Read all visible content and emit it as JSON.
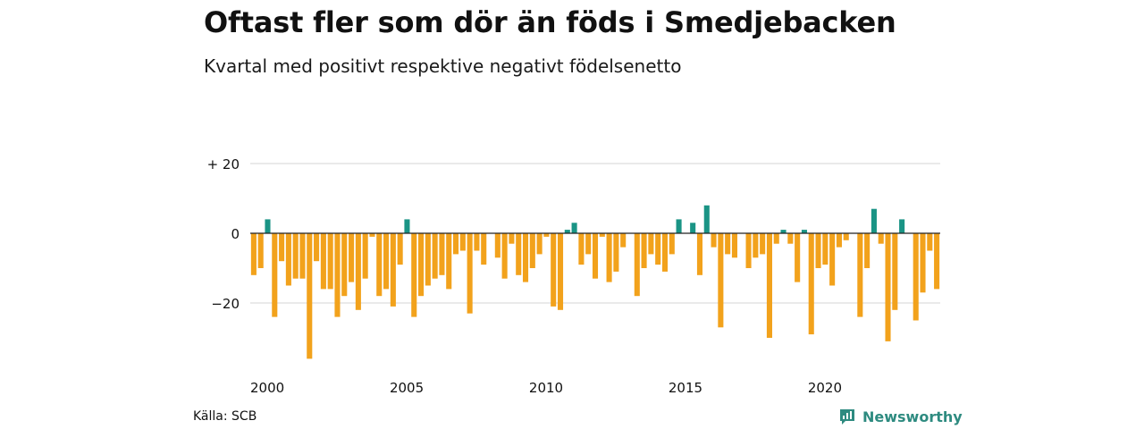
{
  "header": {
    "title": "Oftast fler som dör än föds i Smedjebacken",
    "subtitle": "Kvartal med positivt respektive negativt födelsenetto"
  },
  "footer": {
    "source": "Källa: SCB",
    "brand": "Newsworthy"
  },
  "colors": {
    "positive": "#1a9485",
    "negative": "#f2a21c",
    "grid": "#dddddd",
    "zero_line": "#222222",
    "brand": "#2e8b80"
  },
  "chart_data": {
    "type": "bar",
    "start": "2000 Q1",
    "frequency": "quarterly",
    "x_ticks": [
      "2000",
      "2005",
      "2010",
      "2015",
      "2020"
    ],
    "y_ticks": [
      {
        "value": 20,
        "label": "+ 20"
      },
      {
        "value": 0,
        "label": "0"
      },
      {
        "value": -20,
        "label": "−20"
      }
    ],
    "ylim": [
      -37,
      22
    ],
    "grid": true,
    "values": [
      -12,
      -10,
      4,
      -24,
      -8,
      -15,
      -13,
      -13,
      -36,
      -8,
      -16,
      -16,
      -24,
      -18,
      -14,
      -22,
      -13,
      -1,
      -18,
      -16,
      -21,
      -9,
      4,
      -24,
      -18,
      -15,
      -13,
      -12,
      -16,
      -6,
      -5,
      -23,
      -5,
      -9,
      0,
      -7,
      -13,
      -3,
      -12,
      -14,
      -10,
      -6,
      -1,
      -21,
      -22,
      1,
      3,
      -9,
      -6,
      -13,
      -1,
      -14,
      -11,
      -4,
      0,
      -18,
      -10,
      -6,
      -9,
      -11,
      -6,
      4,
      0,
      3,
      -12,
      8,
      -4,
      -27,
      -6,
      -7,
      0,
      -10,
      -7,
      -6,
      -30,
      -3,
      1,
      -3,
      -14,
      1,
      -29,
      -10,
      -9,
      -15,
      -4,
      -2,
      0,
      -24,
      -10,
      7,
      -3,
      -31,
      -22,
      4,
      0,
      -25,
      -17,
      -5,
      -16
    ]
  }
}
